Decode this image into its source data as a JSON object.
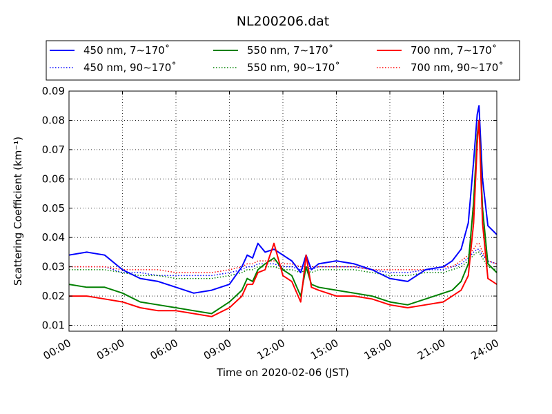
{
  "chart_data": {
    "type": "line",
    "title": "NL200206.dat",
    "xlabel": "Time on 2020-02-06 (JST)",
    "ylabel": "Scattering Coefficient (km⁻¹)",
    "xlim": [
      0,
      24
    ],
    "ylim": [
      0.008,
      0.09
    ],
    "x_ticks": [
      "00:00",
      "03:00",
      "06:00",
      "09:00",
      "12:00",
      "15:00",
      "18:00",
      "21:00",
      "24:00"
    ],
    "y_ticks": [
      "0.01",
      "0.02",
      "0.03",
      "0.04",
      "0.05",
      "0.06",
      "0.07",
      "0.08",
      "0.09"
    ],
    "grid": true,
    "legend_position": "top",
    "x": [
      0,
      1,
      2,
      3,
      4,
      5,
      6,
      7,
      8,
      9,
      9.7,
      10,
      10.3,
      10.6,
      11,
      11.5,
      12,
      12.5,
      13,
      13.3,
      13.6,
      14,
      15,
      16,
      17,
      18,
      19,
      20,
      21,
      21.5,
      22,
      22.4,
      22.7,
      22.9,
      23,
      23.2,
      23.5,
      24
    ],
    "series": [
      {
        "name": "450 nm, 7∼170˚",
        "color": "#0000ff",
        "style": "solid",
        "values": [
          0.034,
          0.035,
          0.034,
          0.029,
          0.026,
          0.025,
          0.023,
          0.021,
          0.022,
          0.024,
          0.03,
          0.034,
          0.033,
          0.038,
          0.035,
          0.036,
          0.034,
          0.032,
          0.028,
          0.034,
          0.029,
          0.031,
          0.032,
          0.031,
          0.029,
          0.026,
          0.025,
          0.029,
          0.03,
          0.032,
          0.036,
          0.045,
          0.066,
          0.082,
          0.085,
          0.06,
          0.044,
          0.041
        ]
      },
      {
        "name": "450 nm, 90∼170˚",
        "color": "#0000ff",
        "style": "dotted",
        "values": [
          0.03,
          0.03,
          0.03,
          0.028,
          0.028,
          0.027,
          0.027,
          0.027,
          0.027,
          0.028,
          0.029,
          0.03,
          0.03,
          0.031,
          0.031,
          0.031,
          0.03,
          0.03,
          0.029,
          0.03,
          0.029,
          0.03,
          0.03,
          0.03,
          0.029,
          0.028,
          0.028,
          0.029,
          0.029,
          0.03,
          0.031,
          0.033,
          0.035,
          0.036,
          0.036,
          0.034,
          0.032,
          0.031
        ]
      },
      {
        "name": "550 nm, 7∼170˚",
        "color": "#008000",
        "style": "solid",
        "values": [
          0.024,
          0.023,
          0.023,
          0.021,
          0.018,
          0.017,
          0.016,
          0.015,
          0.014,
          0.018,
          0.022,
          0.026,
          0.025,
          0.029,
          0.031,
          0.033,
          0.029,
          0.027,
          0.02,
          0.03,
          0.024,
          0.023,
          0.022,
          0.021,
          0.02,
          0.018,
          0.017,
          0.019,
          0.021,
          0.022,
          0.025,
          0.031,
          0.052,
          0.075,
          0.08,
          0.05,
          0.031,
          0.028
        ]
      },
      {
        "name": "550 nm, 90∼170˚",
        "color": "#008000",
        "style": "dotted",
        "values": [
          0.029,
          0.029,
          0.029,
          0.028,
          0.027,
          0.027,
          0.026,
          0.026,
          0.026,
          0.027,
          0.028,
          0.029,
          0.029,
          0.03,
          0.03,
          0.03,
          0.029,
          0.029,
          0.028,
          0.029,
          0.028,
          0.029,
          0.029,
          0.029,
          0.028,
          0.027,
          0.027,
          0.028,
          0.028,
          0.029,
          0.03,
          0.032,
          0.034,
          0.035,
          0.035,
          0.033,
          0.03,
          0.029
        ]
      },
      {
        "name": "700 nm, 7∼170˚",
        "color": "#ff0000",
        "style": "solid",
        "values": [
          0.02,
          0.02,
          0.019,
          0.018,
          0.016,
          0.015,
          0.015,
          0.014,
          0.013,
          0.016,
          0.02,
          0.024,
          0.024,
          0.028,
          0.029,
          0.038,
          0.027,
          0.025,
          0.018,
          0.034,
          0.023,
          0.022,
          0.02,
          0.02,
          0.019,
          0.017,
          0.016,
          0.017,
          0.018,
          0.02,
          0.022,
          0.027,
          0.045,
          0.072,
          0.08,
          0.045,
          0.026,
          0.024
        ]
      },
      {
        "name": "700 nm, 90∼170˚",
        "color": "#ff0000",
        "style": "dotted",
        "values": [
          0.03,
          0.03,
          0.03,
          0.029,
          0.029,
          0.029,
          0.028,
          0.028,
          0.028,
          0.029,
          0.03,
          0.031,
          0.031,
          0.032,
          0.032,
          0.032,
          0.031,
          0.031,
          0.03,
          0.031,
          0.03,
          0.03,
          0.03,
          0.03,
          0.029,
          0.029,
          0.029,
          0.029,
          0.03,
          0.03,
          0.032,
          0.034,
          0.036,
          0.038,
          0.038,
          0.035,
          0.032,
          0.031
        ]
      }
    ]
  }
}
